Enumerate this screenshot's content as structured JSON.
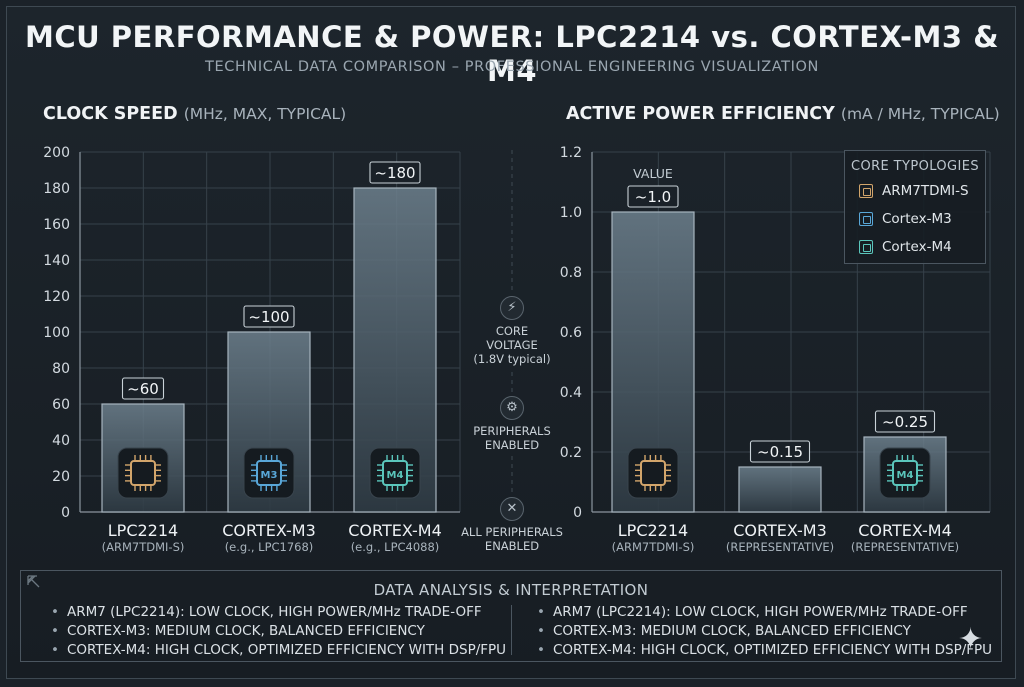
{
  "title": "MCU PERFORMANCE & POWER: LPC2214 vs. CORTEX-M3 & M4",
  "subtitle": "TECHNICAL DATA COMPARISON – PROFESSIONAL ENGINEERING VISUALIZATION",
  "colors": {
    "arm7": "#d2a56b",
    "m3": "#59a7d8",
    "m4": "#5bc6bc",
    "bar_fill": "#5d6f7c",
    "grid": "#36414a"
  },
  "panels": {
    "clock": {
      "title": "CLOCK SPEED",
      "unit": "(MHz, MAX, TYPICAL)"
    },
    "power": {
      "title": "ACTIVE POWER EFFICIENCY",
      "unit": "(mA / MHz, TYPICAL)"
    }
  },
  "middle": {
    "items": [
      {
        "icon": "lightning-icon",
        "glyph": "⚡",
        "lines": [
          "CORE",
          "VOLTAGE",
          "(1.8V typical)"
        ]
      },
      {
        "icon": "gear-icon",
        "glyph": "⚙",
        "lines": [
          "PERIPHERALS",
          "ENABLED"
        ]
      },
      {
        "icon": "tools-icon",
        "glyph": "✕",
        "lines": [
          "ALL PERIPHERALS",
          "ENABLED"
        ]
      }
    ]
  },
  "legend": {
    "title": "CORE TYPOLOGIES",
    "items": [
      {
        "label": "ARM7TDMI-S",
        "color": "#d2a56b"
      },
      {
        "label": "Cortex-M3",
        "color": "#59a7d8"
      },
      {
        "label": "Cortex-M4",
        "color": "#5bc6bc"
      }
    ]
  },
  "chart_data": [
    {
      "type": "bar",
      "title": "CLOCK SPEED",
      "subtitle": "(MHz, MAX, TYPICAL)",
      "categories": [
        "LPC2214",
        "CORTEX-M3",
        "CORTEX-M4"
      ],
      "category_sublabels": [
        "(ARM7TDMI-S)",
        "(e.g., LPC1768)",
        "(e.g., LPC4088)"
      ],
      "values": [
        60,
        100,
        180
      ],
      "value_labels": [
        "~60",
        "~100",
        "~180"
      ],
      "chip_labels": [
        "",
        "M3",
        "M4"
      ],
      "chip_colors": [
        "#d2a56b",
        "#59a7d8",
        "#5bc6bc"
      ],
      "ylim": [
        0,
        200
      ],
      "yticks": [
        "0",
        "20",
        "40",
        "60",
        "80",
        "100",
        "120",
        "140",
        "160",
        "180",
        "200"
      ],
      "grid": true
    },
    {
      "type": "bar",
      "title": "ACTIVE POWER EFFICIENCY",
      "subtitle": "(mA / MHz, TYPICAL)",
      "categories": [
        "LPC2214",
        "CORTEX-M3",
        "CORTEX-M4"
      ],
      "category_sublabels": [
        "(ARM7TDMI-S)",
        "(REPRESENTATIVE)",
        "(REPRESENTATIVE)"
      ],
      "values": [
        1.0,
        0.15,
        0.25
      ],
      "value_labels": [
        "~1.0",
        "~0.15",
        "~0.25"
      ],
      "value_caption": "VALUE",
      "chip_labels": [
        "",
        "",
        "M4"
      ],
      "chip_colors": [
        "#d2a56b",
        "#59a7d8",
        "#5bc6bc"
      ],
      "ylim": [
        0,
        1.2
      ],
      "yticks": [
        "0",
        "0.2",
        "0.4",
        "0.6",
        "0.8",
        "1.0",
        "1.2"
      ],
      "grid": true,
      "legend_position": "top-right"
    }
  ],
  "analysis": {
    "title": "DATA ANALYSIS & INTERPRETATION",
    "left": [
      "ARM7 (LPC2214): LOW CLOCK, HIGH POWER/MHz TRADE-OFF",
      "CORTEX-M3: MEDIUM CLOCK, BALANCED EFFICIENCY",
      "CORTEX-M4: HIGH CLOCK, OPTIMIZED EFFICIENCY WITH DSP/FPU"
    ],
    "right": [
      "ARM7 (LPC2214): LOW CLOCK, HIGH POWER/MHz TRADE-OFF",
      "CORTEX-M3: MEDIUM CLOCK, BALANCED EFFICIENCY",
      "CORTEX-M4: HIGH CLOCK, OPTIMIZED EFFICIENCY WITH DSP/FPU"
    ]
  }
}
